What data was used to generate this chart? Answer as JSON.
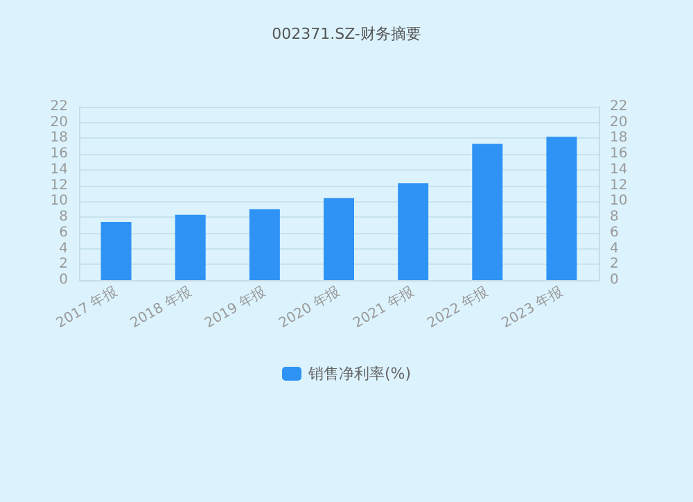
{
  "chart_data": {
    "type": "bar",
    "title": "002371.SZ-财务摘要",
    "categories": [
      "2017 年报",
      "2018 年报",
      "2019 年报",
      "2020 年报",
      "2021 年报",
      "2022 年报",
      "2023 年报"
    ],
    "series": [
      {
        "name": "销售净利率(%)",
        "color": "#2e93f5",
        "values": [
          7.4,
          8.3,
          9.0,
          10.4,
          12.3,
          17.3,
          18.2
        ]
      }
    ],
    "ylim": [
      0,
      22
    ],
    "yticks": [
      0,
      2,
      4,
      6,
      8,
      10,
      12,
      14,
      16,
      18,
      20,
      22
    ],
    "y2lim": [
      0,
      22
    ],
    "y2ticks": [
      0,
      2,
      4,
      6,
      8,
      10,
      12,
      14,
      16,
      18,
      20,
      22
    ],
    "grid": "y",
    "legend": "bottom"
  }
}
